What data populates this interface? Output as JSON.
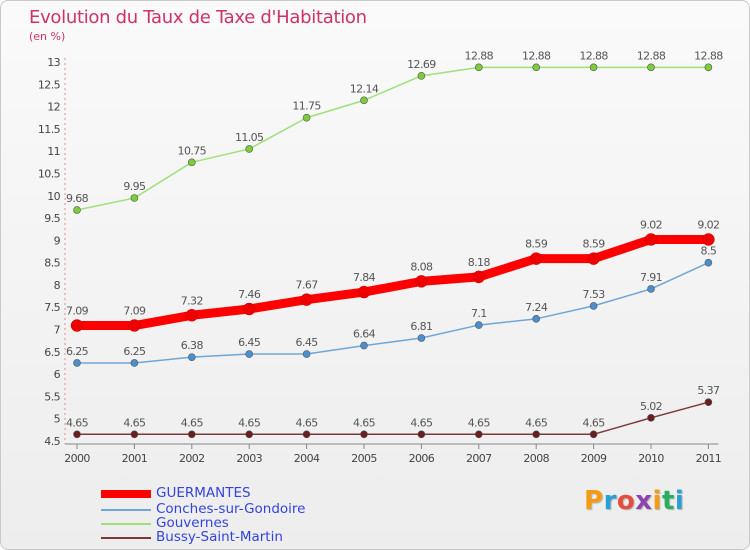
{
  "title": "Evolution du Taux de Taxe d'Habitation",
  "subtitle": "(en %)",
  "logo": {
    "text": "Proxiti",
    "letters": [
      "P",
      "r",
      "o",
      "x",
      "i",
      "t",
      "i"
    ],
    "colors": [
      "#f39c12",
      "#2a9fd6",
      "#e74c3c",
      "#8e44ad",
      "#f39c12",
      "#27ae60",
      "#2a9fd6"
    ]
  },
  "chart_data": {
    "type": "line",
    "title": "Evolution du Taux de Taxe d'Habitation",
    "ylabel": "(en %)",
    "xlabel": "",
    "categories": [
      "2000",
      "2001",
      "2002",
      "2003",
      "2004",
      "2005",
      "2006",
      "2007",
      "2008",
      "2009",
      "2010",
      "2011"
    ],
    "ylim": [
      4.5,
      13
    ],
    "yticks": [
      "4.5",
      "5",
      "5.5",
      "6",
      "6.5",
      "7",
      "7.5",
      "8",
      "8.5",
      "9",
      "9.5",
      "10",
      "10.5",
      "11",
      "11.5",
      "12",
      "12.5",
      "13"
    ],
    "series": [
      {
        "name": "GUERMANTES",
        "color": "#ff0000",
        "markerColor": "#ee0000",
        "width": 9,
        "r": 6,
        "values": [
          7.09,
          7.09,
          7.32,
          7.46,
          7.67,
          7.84,
          8.08,
          8.18,
          8.59,
          8.59,
          9.02,
          9.02
        ],
        "labels": [
          "7.09",
          "7.09",
          "7.32",
          "7.46",
          "7.67",
          "7.84",
          "8.08",
          "8.18",
          "8.59",
          "8.59",
          "9.02",
          "9.02"
        ]
      },
      {
        "name": "Conches-sur-Gondoire",
        "color": "#6fa6d6",
        "markerColor": "#4a90d0",
        "width": 1.5,
        "r": 3.5,
        "values": [
          6.25,
          6.25,
          6.38,
          6.45,
          6.45,
          6.64,
          6.81,
          7.1,
          7.24,
          7.53,
          7.91,
          8.5
        ],
        "labels": [
          "6.25",
          "6.25",
          "6.38",
          "6.45",
          "6.45",
          "6.64",
          "6.81",
          "7.1",
          "7.24",
          "7.53",
          "7.91",
          "8.5"
        ]
      },
      {
        "name": "Gouvernes",
        "color": "#9ee07a",
        "markerColor": "#7ccc3c",
        "width": 1.5,
        "r": 3.5,
        "values": [
          9.68,
          9.95,
          10.75,
          11.05,
          11.75,
          12.14,
          12.69,
          12.88,
          12.88,
          12.88,
          12.88,
          12.88
        ],
        "labels": [
          "9.68",
          "9.95",
          "10.75",
          "11.05",
          "11.75",
          "12.14",
          "12.69",
          "12.88",
          "12.88",
          "12.88",
          "12.88",
          "12.88"
        ]
      },
      {
        "name": "Bussy-Saint-Martin",
        "color": "#7a3a3a",
        "markerColor": "#6b1e1e",
        "width": 1.5,
        "r": 3.5,
        "values": [
          4.65,
          4.65,
          4.65,
          4.65,
          4.65,
          4.65,
          4.65,
          4.65,
          4.65,
          4.65,
          5.02,
          5.37
        ],
        "labels": [
          "4.65",
          "4.65",
          "4.65",
          "4.65",
          "4.65",
          "4.65",
          "4.65",
          "4.65",
          "4.65",
          "4.65",
          "5.02",
          "5.37"
        ]
      }
    ],
    "legend_position": "bottom-left",
    "grid": false
  }
}
